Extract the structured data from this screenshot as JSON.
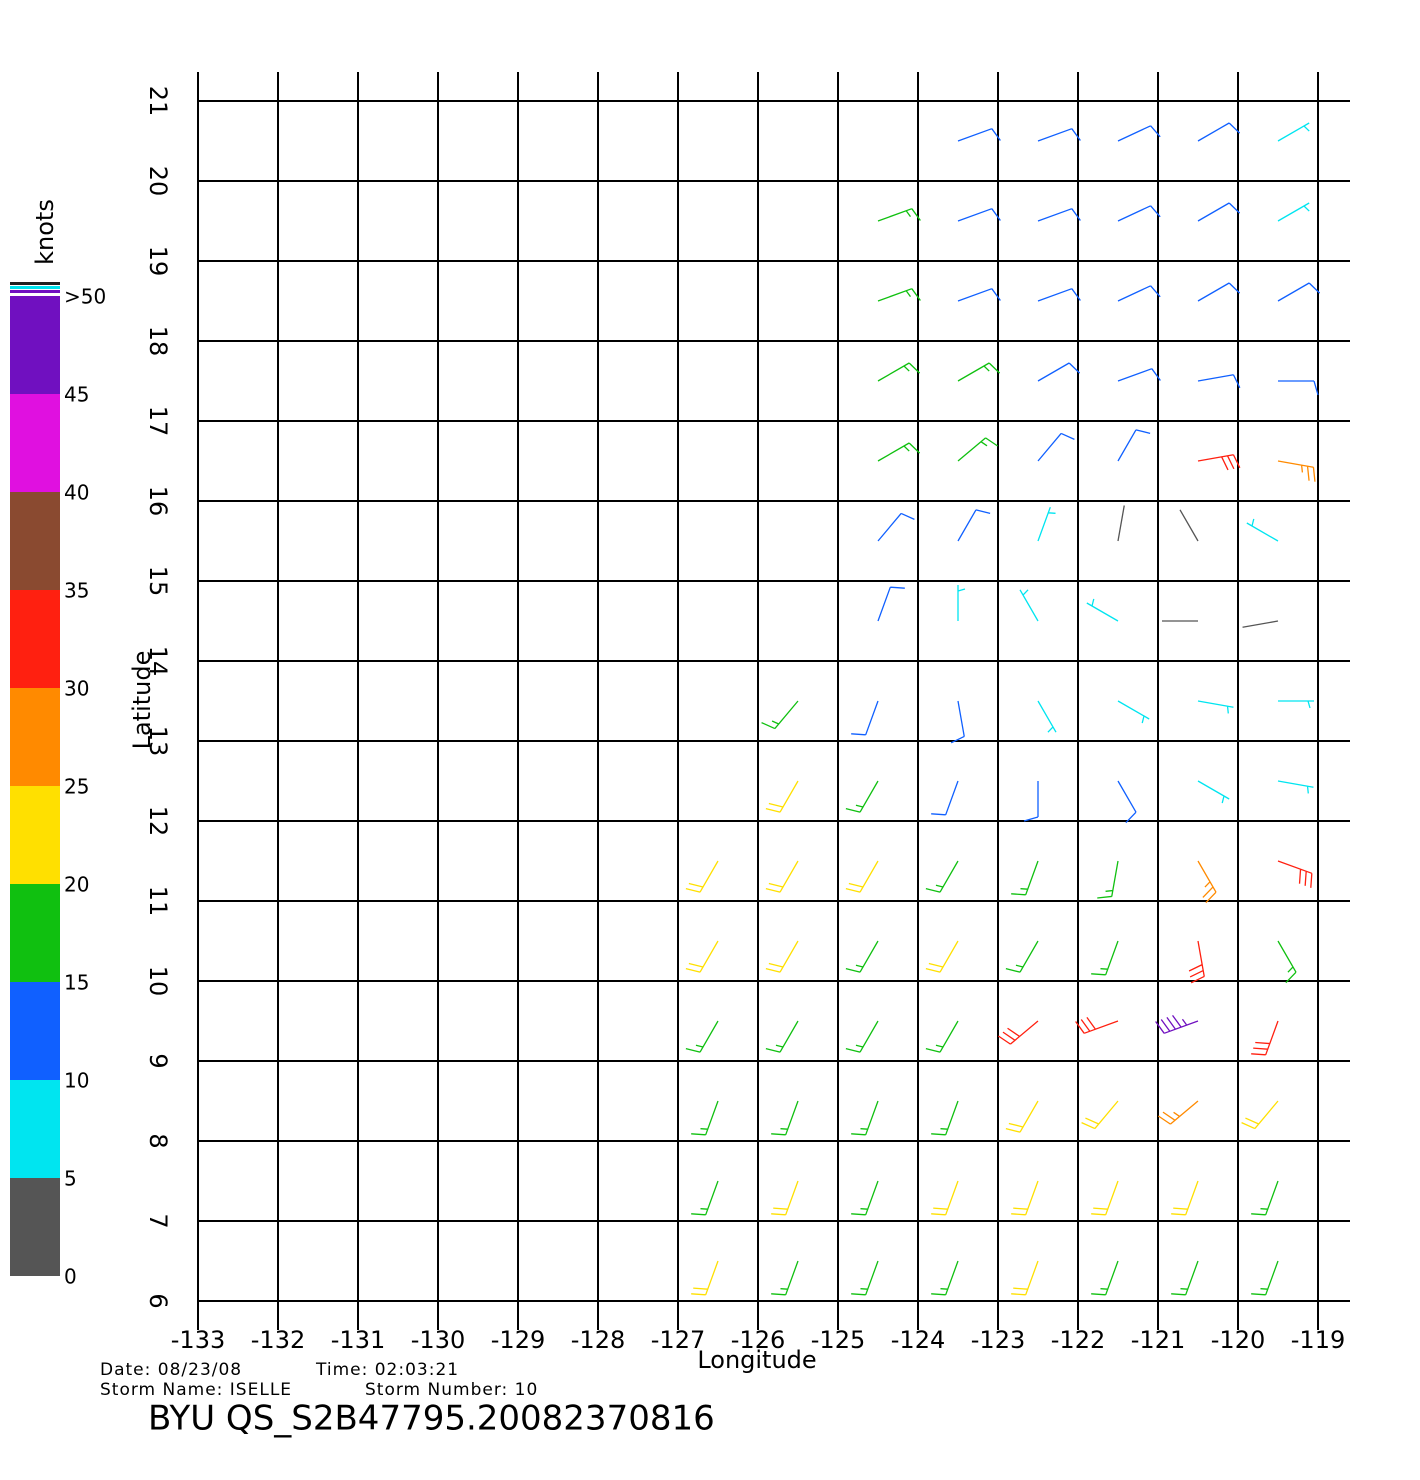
{
  "chart_data": {
    "type": "wind-barb-map",
    "xlabel": "Longitude",
    "ylabel": "Latitude",
    "xlim": [
      -133,
      -118.6
    ],
    "ylim": [
      6,
      21.1
    ],
    "xticks": [
      -133,
      -132,
      -131,
      -130,
      -129,
      -128,
      -127,
      -126,
      -125,
      -124,
      -123,
      -122,
      -121,
      -120,
      -119
    ],
    "yticks": [
      6,
      7,
      8,
      9,
      10,
      11,
      12,
      13,
      14,
      15,
      16,
      17,
      18,
      19,
      20,
      21
    ],
    "grid": true,
    "colorbar": {
      "label": "knots",
      "ticks": [
        0,
        5,
        10,
        15,
        20,
        25,
        30,
        35,
        40,
        45,
        {
          "value": 50,
          "label": ">50"
        }
      ],
      "colors": [
        "#555555",
        "#00e5f0",
        "#1060ff",
        "#10c010",
        "#ffe000",
        "#ff8a00",
        "#ff2010",
        "#8a4a30",
        "#e010e0",
        "#7010c0"
      ]
    },
    "lons": [
      -126.5,
      -125.5,
      -124.5,
      -123.5,
      -122.5,
      -121.5,
      -120.5,
      -119.5
    ],
    "lats": [
      20.5,
      19.5,
      18.5,
      17.5,
      16.5,
      15.5,
      14.5,
      13.5,
      12.5,
      11.5,
      10.5,
      9.5,
      8.5,
      7.5,
      6.5
    ],
    "speed": [
      [
        null,
        null,
        null,
        12,
        12,
        11,
        10,
        9
      ],
      [
        null,
        null,
        17,
        12,
        12,
        11,
        10,
        9
      ],
      [
        null,
        null,
        17,
        13,
        12,
        12,
        12,
        11
      ],
      [
        null,
        null,
        17,
        16,
        12,
        12,
        12,
        12
      ],
      [
        null,
        null,
        18,
        15,
        12,
        12,
        30,
        28
      ],
      [
        null,
        null,
        12,
        11,
        8,
        3,
        3,
        6
      ],
      [
        null,
        null,
        10,
        9,
        8,
        7,
        3,
        3
      ],
      [
        null,
        17,
        12,
        11,
        8,
        8,
        7,
        7
      ],
      [
        null,
        21,
        18,
        13,
        12,
        10,
        8,
        6
      ],
      [
        23,
        22,
        21,
        19,
        18,
        19,
        27,
        31
      ],
      [
        21,
        22,
        19,
        22,
        18,
        18,
        31,
        18
      ],
      [
        18,
        19,
        18,
        17,
        31,
        33,
        45,
        30
      ],
      [
        17,
        18,
        17,
        18,
        20,
        24,
        29,
        23
      ],
      [
        16,
        22,
        17,
        21,
        22,
        21,
        21,
        19
      ],
      [
        21,
        17,
        18,
        17,
        21,
        19,
        18,
        19
      ]
    ],
    "direction": [
      [
        null,
        null,
        null,
        70,
        70,
        65,
        60,
        60
      ],
      [
        null,
        null,
        70,
        70,
        70,
        65,
        60,
        60
      ],
      [
        null,
        null,
        70,
        70,
        70,
        65,
        60,
        60
      ],
      [
        null,
        null,
        60,
        60,
        60,
        70,
        80,
        90
      ],
      [
        null,
        null,
        60,
        50,
        40,
        30,
        80,
        100
      ],
      [
        null,
        null,
        40,
        30,
        20,
        10,
        330,
        300
      ],
      [
        null,
        null,
        20,
        360,
        330,
        300,
        270,
        260
      ],
      [
        null,
        220,
        200,
        170,
        150,
        120,
        100,
        90
      ],
      [
        null,
        210,
        210,
        200,
        180,
        150,
        120,
        100
      ],
      [
        210,
        210,
        210,
        210,
        200,
        190,
        150,
        110
      ],
      [
        210,
        210,
        210,
        210,
        210,
        200,
        170,
        150
      ],
      [
        210,
        210,
        210,
        210,
        230,
        250,
        250,
        200
      ],
      [
        200,
        200,
        200,
        200,
        210,
        220,
        230,
        220
      ],
      [
        200,
        200,
        200,
        200,
        200,
        200,
        200,
        200
      ],
      [
        200,
        200,
        200,
        200,
        200,
        200,
        200,
        200
      ]
    ]
  },
  "footer": {
    "date": "Date: 08/23/08",
    "time": "Time: 02:03:21",
    "storm_name": "Storm Name: ISELLE",
    "storm_number": "Storm Number: 10",
    "product": "BYU QS_S2B47795.20082370816"
  }
}
